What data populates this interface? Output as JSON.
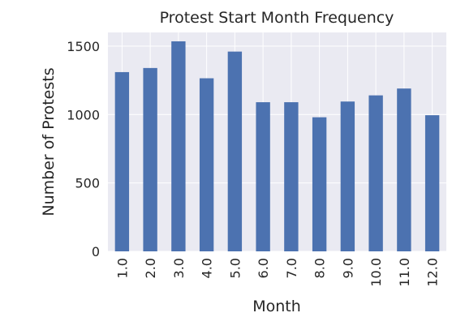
{
  "chart_data": {
    "type": "bar",
    "title": "Protest Start Month Frequency",
    "xlabel": "Month",
    "ylabel": "Number of Protests",
    "categories": [
      "1.0",
      "2.0",
      "3.0",
      "4.0",
      "5.0",
      "6.0",
      "7.0",
      "8.0",
      "9.0",
      "10.0",
      "11.0",
      "12.0"
    ],
    "values": [
      1310,
      1340,
      1535,
      1265,
      1460,
      1090,
      1090,
      980,
      1095,
      1140,
      1190,
      995
    ],
    "ylim": [
      0,
      1600
    ],
    "yticks": [
      0,
      500,
      1000,
      1500
    ],
    "grid": true,
    "bar_color": "#4c72b0",
    "plot_background": "#eaeaf2",
    "grid_color": "#ffffff"
  }
}
